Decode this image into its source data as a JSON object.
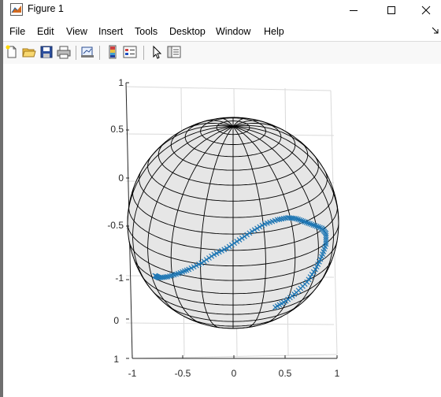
{
  "window": {
    "title": "Figure 1",
    "controls": {
      "minimize": "minimize-icon",
      "maximize": "maximize-icon",
      "close": "close-icon"
    }
  },
  "menu": {
    "items": [
      "File",
      "Edit",
      "View",
      "Insert",
      "Tools",
      "Desktop",
      "Window",
      "Help"
    ]
  },
  "toolbar": {
    "buttons": [
      "new-figure-icon",
      "open-file-icon",
      "save-icon",
      "print-icon",
      "link-plot-icon",
      "insert-colorbar-icon",
      "insert-legend-icon",
      "select-pointer-icon",
      "property-inspector-icon"
    ]
  },
  "chart_data": {
    "type": "scatter",
    "title": "",
    "xlabel": "",
    "ylabel": "",
    "zlabel": "",
    "xlim": [
      -1,
      1
    ],
    "ylim": [
      -1,
      1
    ],
    "zlim": [
      -1,
      1
    ],
    "x_ticks": [
      "-1",
      "-0.5",
      "0",
      "0.5",
      "1"
    ],
    "y_ticks": [
      "-1",
      "-0.5",
      "0",
      "0.5",
      "1"
    ],
    "z_ticks": [
      "0",
      "1"
    ],
    "grid": true,
    "sphere": {
      "radius": 1,
      "face_color": "#e6e6e6",
      "edge_color": "#000000",
      "meridians": 20,
      "parallels": 20
    },
    "series": [
      {
        "marker": "x",
        "color": "#1f77b4",
        "points_screen_units": [
          [
            -0.74,
            -0.5
          ],
          [
            -0.7,
            -0.52
          ],
          [
            -0.62,
            -0.51
          ],
          [
            -0.52,
            -0.48
          ],
          [
            -0.42,
            -0.44
          ],
          [
            -0.3,
            -0.38
          ],
          [
            -0.18,
            -0.3
          ],
          [
            -0.06,
            -0.24
          ],
          [
            0.06,
            -0.16
          ],
          [
            0.18,
            -0.08
          ],
          [
            0.3,
            -0.01
          ],
          [
            0.42,
            0.03
          ],
          [
            0.52,
            0.05
          ],
          [
            0.6,
            0.04
          ],
          [
            0.68,
            0.01
          ],
          [
            0.76,
            -0.02
          ],
          [
            0.84,
            -0.05
          ],
          [
            0.88,
            -0.1
          ],
          [
            0.88,
            -0.2
          ],
          [
            0.84,
            -0.32
          ],
          [
            0.78,
            -0.44
          ],
          [
            0.7,
            -0.56
          ],
          [
            0.6,
            -0.66
          ],
          [
            0.5,
            -0.74
          ],
          [
            0.4,
            -0.8
          ]
        ]
      }
    ]
  }
}
